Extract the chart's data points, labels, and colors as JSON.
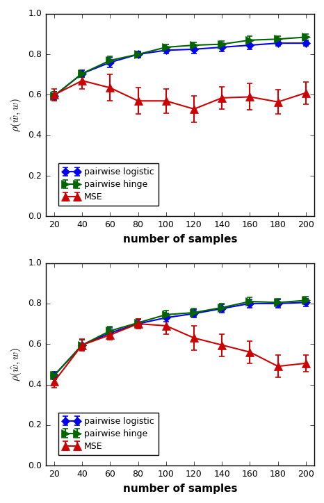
{
  "x": [
    20,
    40,
    60,
    80,
    100,
    120,
    140,
    160,
    180,
    200
  ],
  "top_logistic_y": [
    0.595,
    0.705,
    0.76,
    0.8,
    0.82,
    0.825,
    0.835,
    0.845,
    0.855,
    0.855
  ],
  "top_logistic_err": [
    0.02,
    0.018,
    0.025,
    0.015,
    0.015,
    0.02,
    0.02,
    0.02,
    0.015,
    0.015
  ],
  "top_hinge_y": [
    0.595,
    0.705,
    0.77,
    0.8,
    0.835,
    0.845,
    0.85,
    0.87,
    0.875,
    0.885
  ],
  "top_hinge_err": [
    0.02,
    0.018,
    0.02,
    0.015,
    0.015,
    0.015,
    0.015,
    0.02,
    0.015,
    0.015
  ],
  "top_mse_y": [
    0.6,
    0.67,
    0.635,
    0.57,
    0.57,
    0.53,
    0.585,
    0.59,
    0.565,
    0.61
  ],
  "top_mse_err": [
    0.03,
    0.04,
    0.065,
    0.065,
    0.06,
    0.065,
    0.055,
    0.065,
    0.06,
    0.055
  ],
  "bot_logistic_y": [
    0.445,
    0.595,
    0.655,
    0.7,
    0.73,
    0.75,
    0.775,
    0.8,
    0.8,
    0.805
  ],
  "bot_logistic_err": [
    0.02,
    0.025,
    0.025,
    0.02,
    0.02,
    0.02,
    0.02,
    0.02,
    0.02,
    0.02
  ],
  "bot_hinge_y": [
    0.445,
    0.595,
    0.665,
    0.705,
    0.745,
    0.755,
    0.78,
    0.81,
    0.805,
    0.815
  ],
  "bot_hinge_err": [
    0.02,
    0.025,
    0.02,
    0.02,
    0.02,
    0.02,
    0.018,
    0.02,
    0.018,
    0.018
  ],
  "bot_mse_y": [
    0.415,
    0.595,
    0.645,
    0.7,
    0.69,
    0.63,
    0.595,
    0.56,
    0.49,
    0.505
  ],
  "bot_mse_err": [
    0.03,
    0.03,
    0.025,
    0.025,
    0.04,
    0.06,
    0.055,
    0.055,
    0.055,
    0.04
  ],
  "color_logistic": "#0000ee",
  "color_hinge": "#006400",
  "color_mse": "#cc0000",
  "ylabel": "$\\rho(\\hat{w}, w)$",
  "xlabel": "number of samples",
  "ylim": [
    0.0,
    1.0
  ],
  "yticks": [
    0.0,
    0.2,
    0.4,
    0.6,
    0.8,
    1.0
  ],
  "xticks": [
    20,
    40,
    60,
    80,
    100,
    120,
    140,
    160,
    180,
    200
  ],
  "legend_logistic": "pairwise logistic",
  "legend_hinge": "pairwise hinge",
  "legend_mse": "MSE"
}
